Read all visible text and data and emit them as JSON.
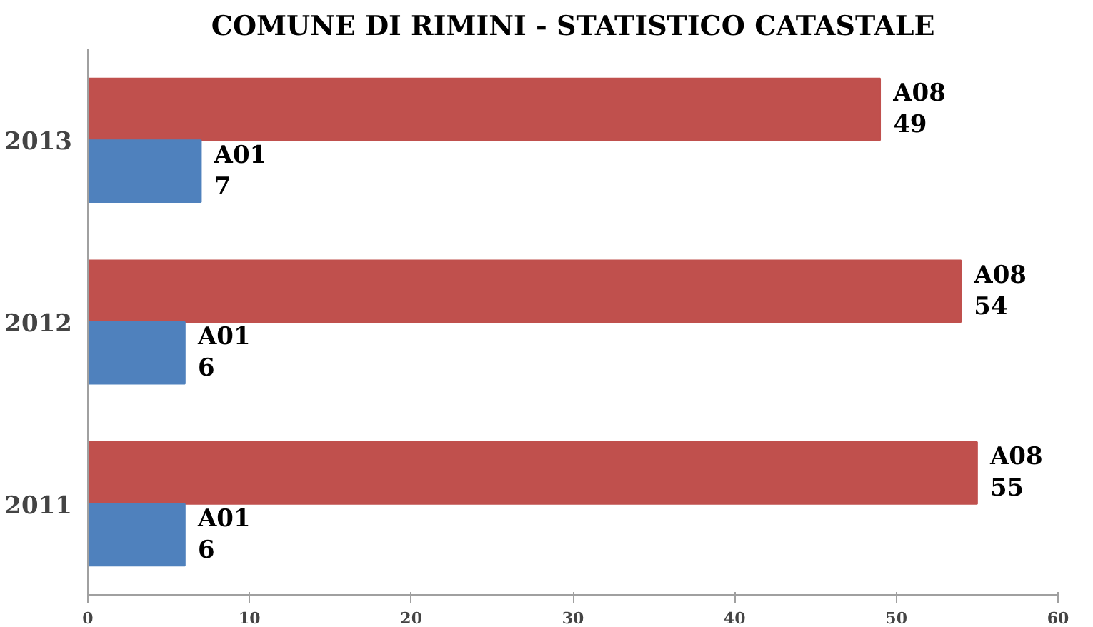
{
  "chart_data": {
    "type": "bar",
    "orientation": "horizontal",
    "title": "COMUNE DI RIMINI - STATISTICO CATASTALE",
    "categories": [
      "2013",
      "2012",
      "2011"
    ],
    "series": [
      {
        "name": "A08",
        "color": "#c0504d",
        "values": [
          49,
          54,
          55
        ]
      },
      {
        "name": "A01",
        "color": "#4f81bd",
        "values": [
          7,
          6,
          6
        ]
      }
    ],
    "xlim": [
      0,
      60
    ],
    "xticks": [
      0,
      10,
      20,
      30,
      40,
      50,
      60
    ],
    "grid": false,
    "legend": false,
    "data_labels": true
  }
}
